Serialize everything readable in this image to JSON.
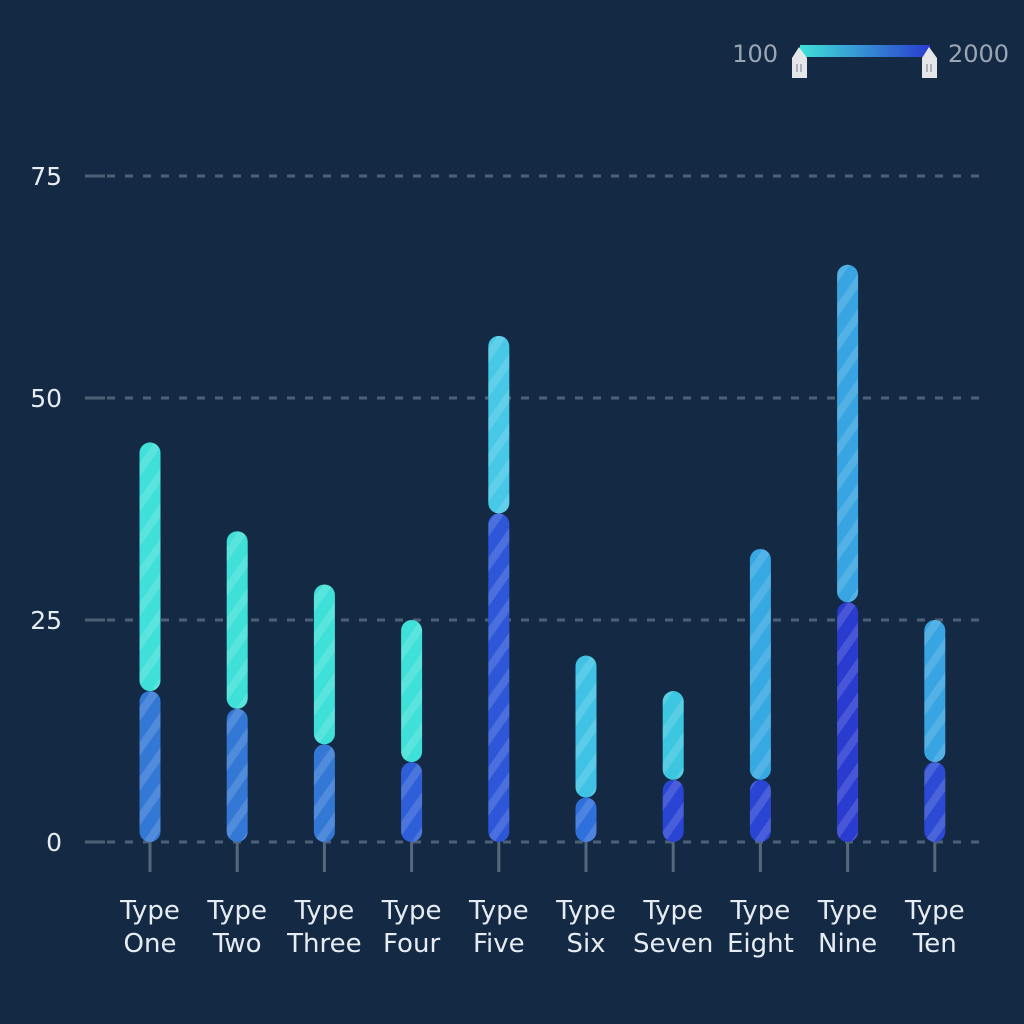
{
  "chart_data": {
    "type": "bar",
    "stacked": true,
    "categories": [
      [
        "Type",
        "One"
      ],
      [
        "Type",
        "Two"
      ],
      [
        "Type",
        "Three"
      ],
      [
        "Type",
        "Four"
      ],
      [
        "Type",
        "Five"
      ],
      [
        "Type",
        "Six"
      ],
      [
        "Type",
        "Seven"
      ],
      [
        "Type",
        "Eight"
      ],
      [
        "Type",
        "Nine"
      ],
      [
        "Type",
        "Ten"
      ]
    ],
    "series": [
      {
        "values": [
          17,
          15,
          11,
          9,
          37,
          5,
          7,
          7,
          27,
          9
        ],
        "colors": [
          "#3478d6",
          "#3478d6",
          "#3478d6",
          "#2f5fd8",
          "#2d57d8",
          "#3070dc",
          "#2a44d4",
          "#2a44d4",
          "#2a3bd0",
          "#2c4ad4"
        ]
      },
      {
        "values": [
          28,
          20,
          18,
          16,
          20,
          16,
          10,
          26,
          38,
          16
        ],
        "colors": [
          "#3fe0d8",
          "#3fe0d8",
          "#3fe0d8",
          "#3fe0d8",
          "#46c8e6",
          "#3fc2e4",
          "#3cc6e0",
          "#36a8e2",
          "#38a4e2",
          "#38a4e2"
        ]
      }
    ],
    "ylim": [
      0,
      75
    ],
    "yticks": [
      0,
      25,
      50,
      75
    ],
    "grid": true,
    "grid_style": "dashed",
    "legend": "none",
    "visual_map": {
      "min": "100",
      "max": "2000",
      "colors": [
        "#3fe0d8",
        "#2a3bd0"
      ],
      "placement": "top-right"
    }
  }
}
